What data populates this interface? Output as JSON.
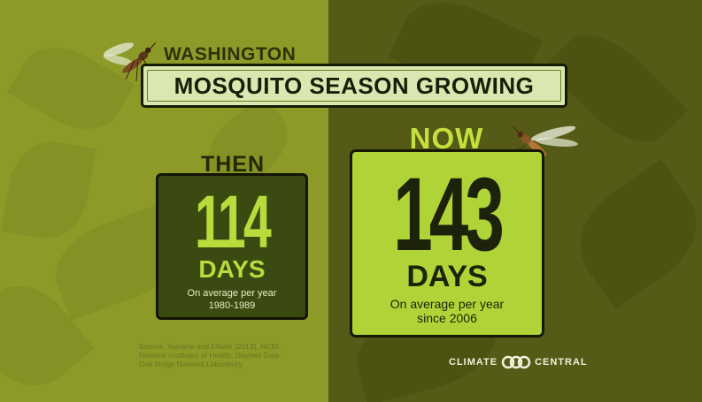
{
  "header": {
    "region": "WASHINGTON",
    "title": "MOSQUITO SEASON GROWING"
  },
  "then": {
    "label": "THEN",
    "number": "114",
    "unit": "DAYS",
    "line1": "On average per year",
    "line2": "1980-1989"
  },
  "now": {
    "label": "NOW",
    "number": "143",
    "unit": "DAYS",
    "line1": "On average per year",
    "line2": "since 2006"
  },
  "source": {
    "line1": "Source: Yamana and Eltahir (2013), NCBI,",
    "line2": "National Institutes of Health, Daymet Data,",
    "line3": "Oak Ridge National Laboratory"
  },
  "logo": {
    "left": "CLIMATE",
    "right": "CENTRAL"
  },
  "icons": [
    "mosquito-icon",
    "climate-central-logo-icon"
  ],
  "colors": {
    "left_bg": "#8d9a28",
    "right_bg": "#555a16",
    "title_box": "#d9e8b0",
    "then_box": "#3b4a10",
    "now_box": "#b0d438",
    "accent_green": "#b9dc3c"
  }
}
